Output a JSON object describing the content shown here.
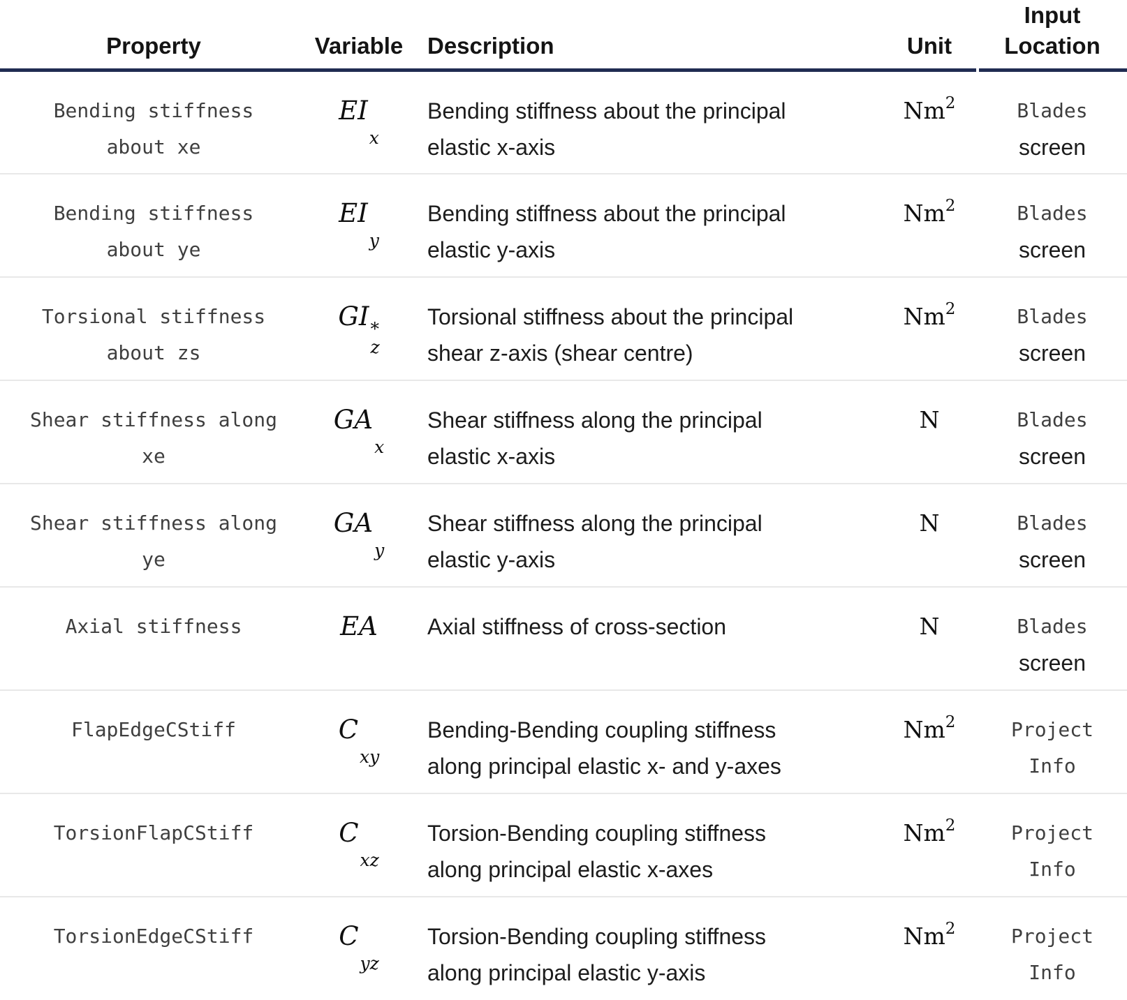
{
  "colors": {
    "header_rule": "#202C52",
    "row_divider": "#E8E8E8",
    "code_text": "#3F3F3F",
    "body_text": "#1C1C1C"
  },
  "header": {
    "property": "Property",
    "variable": "Variable",
    "description": "Description",
    "unit": "Unit",
    "input_location": "Input\nLocation"
  },
  "rows": [
    {
      "property": "Bending stiffness\nabout xe",
      "variable": {
        "main": "EI",
        "sup": "",
        "sub": "x"
      },
      "description": "Bending stiffness about the principal\nelastic x-axis",
      "unit": {
        "base": "Nm",
        "sup": "2"
      },
      "location": [
        {
          "style": "code",
          "text": "Blades"
        },
        {
          "style": "plain",
          "text": "screen"
        }
      ]
    },
    {
      "property": "Bending stiffness\nabout ye",
      "variable": {
        "main": "EI",
        "sup": "",
        "sub": "y"
      },
      "description": "Bending stiffness about the principal\nelastic y-axis",
      "unit": {
        "base": "Nm",
        "sup": "2"
      },
      "location": [
        {
          "style": "code",
          "text": "Blades"
        },
        {
          "style": "plain",
          "text": "screen"
        }
      ]
    },
    {
      "property": "Torsional stiffness\nabout zs",
      "variable": {
        "main": "GI",
        "sup": "*",
        "sub": "z"
      },
      "description": "Torsional stiffness about the principal\nshear z-axis (shear centre)",
      "unit": {
        "base": "Nm",
        "sup": "2"
      },
      "location": [
        {
          "style": "code",
          "text": "Blades"
        },
        {
          "style": "plain",
          "text": "screen"
        }
      ]
    },
    {
      "property": "Shear stiffness along\nxe",
      "variable": {
        "main": "GA",
        "sup": "",
        "sub": "x"
      },
      "description": "Shear stiffness along the principal\nelastic x-axis",
      "unit": {
        "base": "N",
        "sup": ""
      },
      "location": [
        {
          "style": "code",
          "text": "Blades"
        },
        {
          "style": "plain",
          "text": "screen"
        }
      ]
    },
    {
      "property": "Shear stiffness along\nye",
      "variable": {
        "main": "GA",
        "sup": "",
        "sub": "y"
      },
      "description": "Shear stiffness along the principal\nelastic y-axis",
      "unit": {
        "base": "N",
        "sup": ""
      },
      "location": [
        {
          "style": "code",
          "text": "Blades"
        },
        {
          "style": "plain",
          "text": "screen"
        }
      ]
    },
    {
      "property": "Axial stiffness",
      "variable": {
        "main": "EA",
        "sup": "",
        "sub": ""
      },
      "description": "Axial stiffness of cross-section",
      "unit": {
        "base": "N",
        "sup": ""
      },
      "location": [
        {
          "style": "code",
          "text": "Blades"
        },
        {
          "style": "plain",
          "text": "screen"
        }
      ]
    },
    {
      "property": "FlapEdgeCStiff",
      "variable": {
        "main": "C",
        "sup": "",
        "sub": "xy"
      },
      "description": "Bending-Bending coupling stiffness\nalong principal elastic x- and y-axes",
      "unit": {
        "base": "Nm",
        "sup": "2"
      },
      "location": [
        {
          "style": "code",
          "text": "Project"
        },
        {
          "style": "code",
          "text": "Info"
        }
      ]
    },
    {
      "property": "TorsionFlapCStiff",
      "variable": {
        "main": "C",
        "sup": "",
        "sub": "xz"
      },
      "description": "Torsion-Bending coupling stiffness\nalong principal elastic x-axes",
      "unit": {
        "base": "Nm",
        "sup": "2"
      },
      "location": [
        {
          "style": "code",
          "text": "Project"
        },
        {
          "style": "code",
          "text": "Info"
        }
      ]
    },
    {
      "property": "TorsionEdgeCStiff",
      "variable": {
        "main": "C",
        "sup": "",
        "sub": "yz"
      },
      "description": "Torsion-Bending coupling stiffness\nalong principal elastic y-axis",
      "unit": {
        "base": "Nm",
        "sup": "2"
      },
      "location": [
        {
          "style": "code",
          "text": "Project"
        },
        {
          "style": "code",
          "text": "Info"
        }
      ]
    }
  ]
}
